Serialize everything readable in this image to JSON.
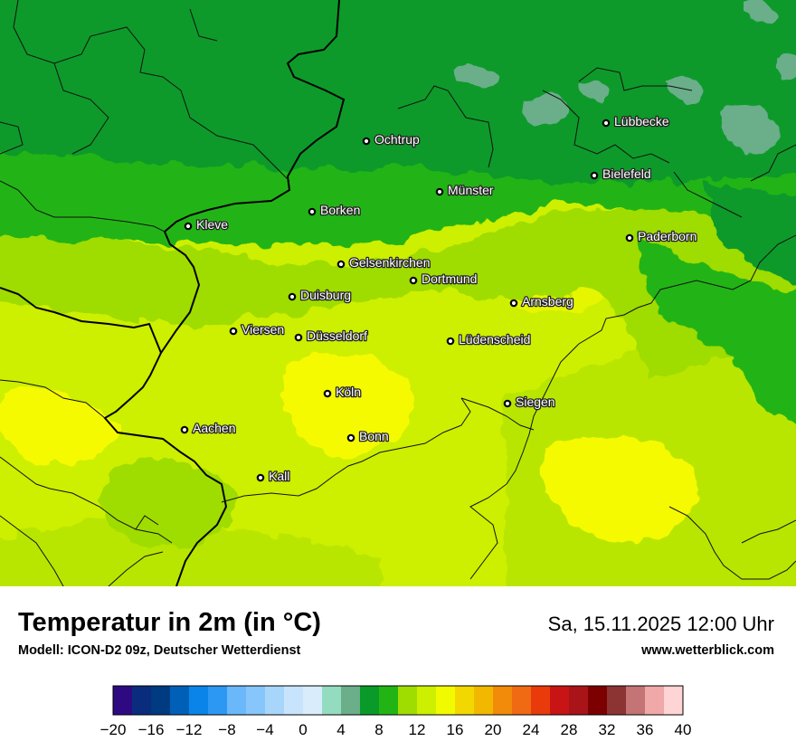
{
  "map": {
    "cities": [
      {
        "name": "Lübbecke",
        "id": "luebbecke"
      },
      {
        "name": "Ochtrup",
        "id": "ochtrup"
      },
      {
        "name": "Bielefeld",
        "id": "bielefeld"
      },
      {
        "name": "Münster",
        "id": "muenster"
      },
      {
        "name": "Borken",
        "id": "borken"
      },
      {
        "name": "Kleve",
        "id": "kleve"
      },
      {
        "name": "Paderborn",
        "id": "paderborn"
      },
      {
        "name": "Gelsenkirchen",
        "id": "gelsenkirchen"
      },
      {
        "name": "Dortmund",
        "id": "dortmund"
      },
      {
        "name": "Duisburg",
        "id": "duisburg"
      },
      {
        "name": "Arnsberg",
        "id": "arnsberg"
      },
      {
        "name": "Viersen",
        "id": "viersen"
      },
      {
        "name": "Düsseldorf",
        "id": "duesseldorf"
      },
      {
        "name": "Lüdenscheid",
        "id": "luedenscheid"
      },
      {
        "name": "Köln",
        "id": "koeln"
      },
      {
        "name": "Siegen",
        "id": "siegen"
      },
      {
        "name": "Aachen",
        "id": "aachen"
      },
      {
        "name": "Bonn",
        "id": "bonn"
      },
      {
        "name": "Kall",
        "id": "kall"
      }
    ],
    "colors": {
      "dark_green": "#0a9a2a",
      "green": "#22b414",
      "light_green": "#9fdc00",
      "yellow_green": "#cdef00",
      "yellow": "#f5fa00",
      "teal": "#6aae8a"
    }
  },
  "footer": {
    "title": "Temperatur in 2m (in °C)",
    "subtitle": "Modell: ICON-D2 09z, Deutscher Wetterdienst",
    "datetime": "Sa, 15.11.2025 12:00 Uhr",
    "website": "www.wetterblick.com"
  },
  "legend": {
    "min": -20,
    "max": 40,
    "step": 2,
    "tick_labels": [
      "−20",
      "−16",
      "−12",
      "−8",
      "−4",
      "0",
      "4",
      "8",
      "12",
      "16",
      "20",
      "24",
      "28",
      "32",
      "36",
      "40"
    ],
    "colors": [
      "#2e0a82",
      "#0a2c7c",
      "#003a80",
      "#0060b8",
      "#0a84e8",
      "#2c98f4",
      "#6ab8fa",
      "#86c6fa",
      "#a8d6fa",
      "#c8e4fc",
      "#d8ecfc",
      "#94dcc0",
      "#6aae8a",
      "#0a9a2a",
      "#22b414",
      "#9fdc00",
      "#cdef00",
      "#f2fa00",
      "#f2d800",
      "#f2b800",
      "#f28a0a",
      "#f06a14",
      "#e83a0a",
      "#c81414",
      "#a81418",
      "#7c0000",
      "#8c3434",
      "#c47474",
      "#f0a8a8",
      "#ffd4d4"
    ]
  }
}
